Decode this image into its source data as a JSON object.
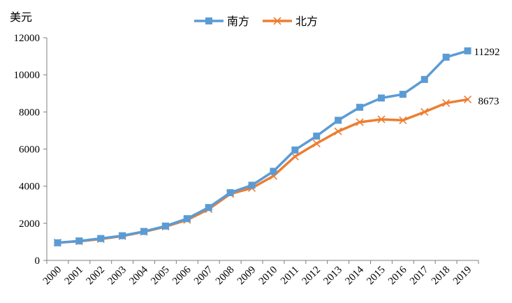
{
  "chart_data": {
    "type": "line",
    "unit": "美元",
    "categories": [
      "2000",
      "2001",
      "2002",
      "2003",
      "2004",
      "2005",
      "2006",
      "2007",
      "2008",
      "2009",
      "2010",
      "2011",
      "2012",
      "2013",
      "2014",
      "2015",
      "2016",
      "2017",
      "2018",
      "2019"
    ],
    "ylim": [
      0,
      12000
    ],
    "yticks": [
      "0",
      "2000",
      "4000",
      "6000",
      "8000",
      "10000",
      "12000"
    ],
    "grid": false,
    "legend_position": "top-center",
    "series": [
      {
        "name": "南方",
        "color": "#5B9BD5",
        "marker": "square",
        "values": [
          950,
          1050,
          1180,
          1330,
          1560,
          1850,
          2250,
          2850,
          3650,
          4050,
          4800,
          5950,
          6700,
          7550,
          8250,
          8750,
          8950,
          9750,
          10950,
          11292
        ],
        "end_label": "11292"
      },
      {
        "name": "北方",
        "color": "#ED7D31",
        "marker": "x",
        "values": [
          960,
          1030,
          1150,
          1310,
          1540,
          1820,
          2180,
          2760,
          3580,
          3900,
          4550,
          5600,
          6300,
          6950,
          7450,
          7600,
          7550,
          8000,
          8480,
          8673
        ],
        "end_label": "8673"
      }
    ]
  }
}
